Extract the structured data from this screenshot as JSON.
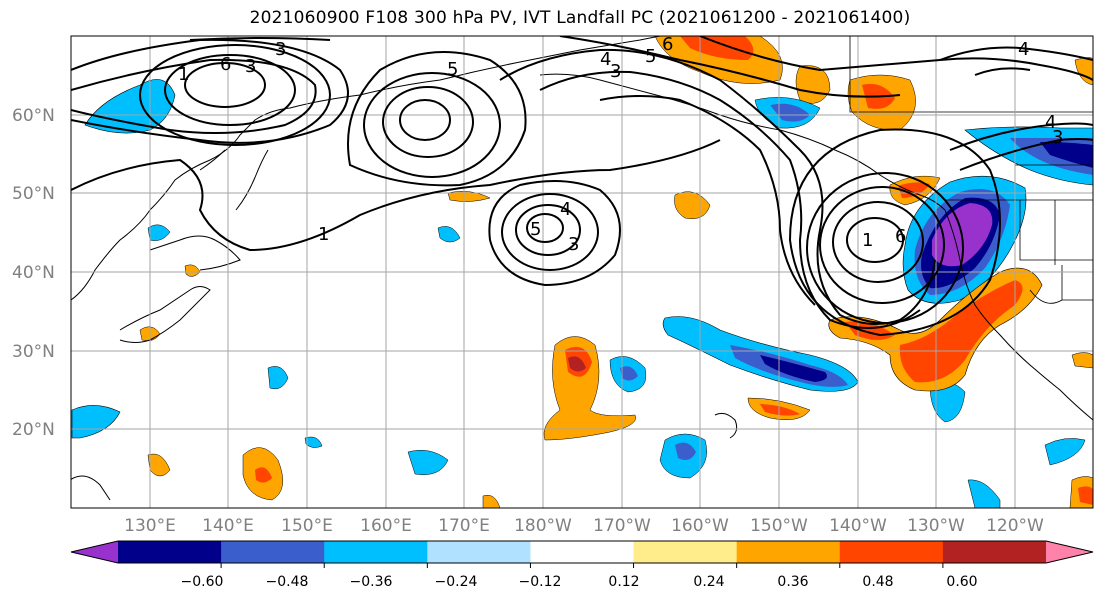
{
  "title": "2021060900 F108 300 hPa PV, IVT Landfall PC (2021061200 - 2021061400)",
  "map": {
    "lat_labels": [
      "60°N",
      "50°N",
      "40°N",
      "30°N",
      "20°N"
    ],
    "lon_labels": [
      "130°E",
      "140°E",
      "150°E",
      "160°E",
      "170°E",
      "180°W",
      "170°W",
      "160°W",
      "150°W",
      "140°W",
      "130°W",
      "120°W"
    ],
    "contour_labels": [
      "1",
      "3",
      "5",
      "6",
      "3",
      "4",
      "5",
      "4",
      "3",
      "1",
      "6",
      "4",
      "3",
      "5",
      "1",
      "6",
      "4",
      "3"
    ]
  },
  "colorbar": {
    "tick_labels": [
      "−0.60",
      "−0.48",
      "−0.36",
      "−0.24",
      "−0.12",
      "0.12",
      "0.24",
      "0.36",
      "0.48",
      "0.60"
    ],
    "colors": [
      "#9932cc",
      "#00008b",
      "#3a5fcd",
      "#00bfff",
      "#b0e2ff",
      "#ffffff",
      "#ffec8b",
      "#ffa500",
      "#ff4500",
      "#b22222",
      "#ff82ab"
    ]
  }
}
